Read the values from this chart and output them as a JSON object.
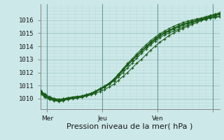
{
  "bg_color": "#cce8e8",
  "plot_bg_color": "#cce8e8",
  "grid_color_major": "#aacccc",
  "grid_color_minor": "#bbdddd",
  "line_color": "#1a5c1a",
  "axis_label": "Pression niveau de la mer( hPa )",
  "ylabel_ticks": [
    1010,
    1011,
    1012,
    1013,
    1014,
    1015,
    1016
  ],
  "ylim": [
    1009.2,
    1017.2
  ],
  "xlim": [
    0,
    78
  ],
  "xtick_positions": [
    3,
    27,
    51,
    75
  ],
  "xtick_labels": [
    "Mer",
    "Jeu",
    "Ven",
    ""
  ],
  "vline_positions": [
    3,
    27,
    51,
    75
  ],
  "tick_fontsize": 6.5,
  "label_fontsize": 8,
  "figsize": [
    3.2,
    2.0
  ],
  "lines": [
    {
      "x": [
        0,
        2,
        4,
        6,
        8,
        10,
        12,
        14,
        16,
        18,
        20,
        22,
        24,
        26,
        28,
        30,
        32,
        34,
        36,
        38,
        40,
        42,
        44,
        46,
        48,
        50,
        52,
        54,
        56,
        58,
        60,
        62,
        64,
        66,
        68,
        70,
        72,
        74,
        76,
        78
      ],
      "y": [
        1010.5,
        1010.2,
        1010.0,
        1009.9,
        1009.85,
        1009.9,
        1010.0,
        1010.05,
        1010.1,
        1010.15,
        1010.2,
        1010.3,
        1010.4,
        1010.55,
        1010.7,
        1010.9,
        1011.1,
        1011.4,
        1011.7,
        1012.0,
        1012.35,
        1012.7,
        1013.0,
        1013.35,
        1013.7,
        1014.0,
        1014.3,
        1014.55,
        1014.8,
        1015.0,
        1015.2,
        1015.35,
        1015.5,
        1015.65,
        1015.8,
        1015.95,
        1016.05,
        1016.15,
        1016.2,
        1016.3
      ]
    },
    {
      "x": [
        0,
        2,
        4,
        6,
        8,
        10,
        12,
        14,
        16,
        18,
        20,
        22,
        24,
        26,
        28,
        30,
        32,
        34,
        36,
        38,
        40,
        42,
        44,
        46,
        48,
        50,
        52,
        54,
        56,
        58,
        60,
        62,
        64,
        66,
        68,
        70,
        72,
        74,
        76,
        78
      ],
      "y": [
        1010.4,
        1010.1,
        1009.95,
        1009.85,
        1009.8,
        1009.85,
        1009.95,
        1010.0,
        1010.05,
        1010.1,
        1010.2,
        1010.3,
        1010.5,
        1010.7,
        1010.9,
        1011.1,
        1011.35,
        1011.65,
        1012.0,
        1012.35,
        1012.7,
        1013.1,
        1013.45,
        1013.8,
        1014.1,
        1014.4,
        1014.65,
        1014.85,
        1015.0,
        1015.15,
        1015.3,
        1015.45,
        1015.6,
        1015.75,
        1015.9,
        1016.0,
        1016.1,
        1016.15,
        1016.2,
        1016.25
      ]
    },
    {
      "x": [
        0,
        2,
        4,
        6,
        8,
        10,
        12,
        14,
        16,
        18,
        20,
        22,
        24,
        26,
        28,
        30,
        32,
        34,
        36,
        38,
        40,
        42,
        44,
        46,
        48,
        50,
        52,
        54,
        56,
        58,
        60,
        62,
        64,
        66,
        68,
        70,
        72,
        74,
        76,
        78
      ],
      "y": [
        1010.6,
        1010.3,
        1010.1,
        1010.0,
        1009.95,
        1009.98,
        1010.05,
        1010.1,
        1010.15,
        1010.2,
        1010.3,
        1010.4,
        1010.55,
        1010.7,
        1010.88,
        1011.1,
        1011.4,
        1011.75,
        1012.15,
        1012.55,
        1012.9,
        1013.25,
        1013.6,
        1013.9,
        1014.2,
        1014.5,
        1014.75,
        1015.0,
        1015.2,
        1015.4,
        1015.55,
        1015.7,
        1015.8,
        1015.9,
        1016.0,
        1016.1,
        1016.2,
        1016.3,
        1016.4,
        1016.5
      ]
    },
    {
      "x": [
        0,
        2,
        4,
        6,
        8,
        10,
        12,
        14,
        16,
        18,
        20,
        22,
        24,
        26,
        28,
        30,
        32,
        34,
        36,
        38,
        40,
        42,
        44,
        46,
        48,
        50,
        52,
        54,
        56,
        58,
        60,
        62,
        64,
        66,
        68,
        70,
        72,
        74,
        76,
        78
      ],
      "y": [
        1010.55,
        1010.25,
        1010.05,
        1009.95,
        1009.88,
        1009.92,
        1010.02,
        1010.08,
        1010.12,
        1010.18,
        1010.28,
        1010.4,
        1010.58,
        1010.78,
        1010.98,
        1011.2,
        1011.5,
        1011.85,
        1012.25,
        1012.6,
        1012.95,
        1013.3,
        1013.65,
        1014.0,
        1014.3,
        1014.6,
        1014.85,
        1015.05,
        1015.2,
        1015.35,
        1015.5,
        1015.65,
        1015.77,
        1015.88,
        1015.97,
        1016.05,
        1016.15,
        1016.25,
        1016.35,
        1016.45
      ]
    },
    {
      "x": [
        0,
        2,
        4,
        6,
        8,
        10,
        12,
        14,
        16,
        18,
        20,
        22,
        24,
        26,
        28,
        30,
        32,
        34,
        36,
        38,
        40,
        42,
        44,
        46,
        48,
        50,
        52,
        54,
        56,
        58,
        60,
        62,
        64,
        66,
        68,
        70,
        72,
        74,
        76,
        78
      ],
      "y": [
        1010.45,
        1010.15,
        1009.98,
        1009.88,
        1009.82,
        1009.87,
        1009.97,
        1010.03,
        1010.08,
        1010.14,
        1010.24,
        1010.35,
        1010.52,
        1010.72,
        1010.92,
        1011.15,
        1011.45,
        1011.8,
        1012.18,
        1012.56,
        1012.92,
        1013.28,
        1013.62,
        1013.96,
        1014.25,
        1014.53,
        1014.77,
        1014.97,
        1015.13,
        1015.28,
        1015.43,
        1015.58,
        1015.7,
        1015.82,
        1015.92,
        1016.0,
        1016.1,
        1016.2,
        1016.3,
        1016.4
      ]
    },
    {
      "x": [
        0,
        2,
        4,
        6,
        8,
        10,
        12,
        14,
        16,
        18,
        20,
        22,
        24,
        26,
        28,
        30,
        32,
        34,
        36,
        38,
        40,
        42,
        44,
        46,
        48,
        50,
        52,
        54,
        56,
        58,
        60,
        62,
        64,
        66,
        68,
        70,
        72,
        74,
        76,
        78
      ],
      "y": [
        1010.65,
        1010.35,
        1010.15,
        1010.02,
        1009.97,
        1010.0,
        1010.08,
        1010.13,
        1010.18,
        1010.22,
        1010.32,
        1010.42,
        1010.58,
        1010.75,
        1010.94,
        1011.18,
        1011.5,
        1011.88,
        1012.3,
        1012.7,
        1013.05,
        1013.42,
        1013.78,
        1014.12,
        1014.42,
        1014.7,
        1014.94,
        1015.15,
        1015.34,
        1015.52,
        1015.67,
        1015.8,
        1015.91,
        1016.0,
        1016.08,
        1016.15,
        1016.25,
        1016.35,
        1016.45,
        1016.55
      ]
    }
  ]
}
